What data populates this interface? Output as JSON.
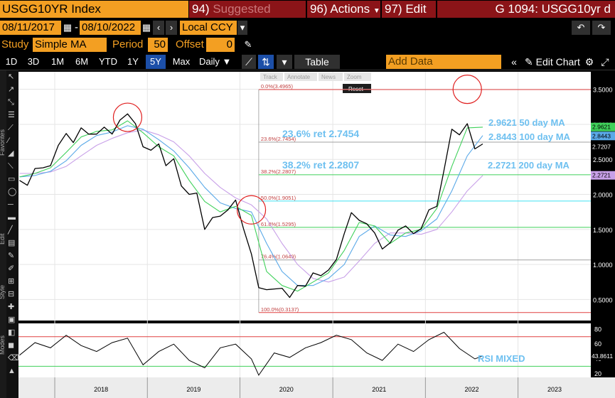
{
  "header": {
    "ticker": "USGG10YR Index",
    "menu": [
      {
        "num": "94)",
        "label": "Suggested Charts"
      },
      {
        "num": "96)",
        "label": "Actions"
      },
      {
        "num": "97)",
        "label": "Edit"
      }
    ],
    "title": "G 1094: USGG10yr d"
  },
  "controls": {
    "start_date": "08/11/2017",
    "end_date": "08/10/2022",
    "currency": "Local CCY",
    "study_label": "Study",
    "study_value": "Simple MA",
    "period_label": "Period",
    "period_value": "50",
    "offset_label": "Offset",
    "offset_value": "0"
  },
  "toolbar": {
    "ranges": [
      "1D",
      "3D",
      "1M",
      "6M",
      "YTD",
      "1Y",
      "5Y",
      "Max"
    ],
    "selected_range": "5Y",
    "frequency": "Daily",
    "table": "Table",
    "add_data_placeholder": "Add Data",
    "edit_chart": "Edit Chart",
    "sidebar_sections": [
      "Favorites",
      "Edit",
      "Style",
      "Modes"
    ],
    "chart_tools": [
      "Track",
      "Annotate",
      "News",
      "Zoom"
    ],
    "reset": "Reset"
  },
  "chart_data": {
    "type": "line",
    "title": "",
    "x_ticks": [
      "2018",
      "2019",
      "2020",
      "2021",
      "2022",
      "2023"
    ],
    "y_ticks": [
      "3.5000",
      "3.0000",
      "2.5000",
      "2.0000",
      "1.5000",
      "1.0000",
      "0.5000"
    ],
    "ylim": [
      0.2,
      3.75
    ],
    "xlim": [
      "2017-08-11",
      "2023-10-15"
    ],
    "series": [
      {
        "name": "USGG10YR",
        "color": "#ffffff",
        "x": [
          "2017-08",
          "2017-09",
          "2017-10",
          "2017-11",
          "2017-12",
          "2018-01",
          "2018-02",
          "2018-03",
          "2018-04",
          "2018-05",
          "2018-06",
          "2018-07",
          "2018-08",
          "2018-09",
          "2018-10",
          "2018-11",
          "2018-12",
          "2019-01",
          "2019-02",
          "2019-03",
          "2019-04",
          "2019-05",
          "2019-06",
          "2019-07",
          "2019-08",
          "2019-09",
          "2019-10",
          "2019-11",
          "2019-12",
          "2020-01",
          "2020-02",
          "2020-03",
          "2020-04",
          "2020-05",
          "2020-06",
          "2020-07",
          "2020-08",
          "2020-09",
          "2020-10",
          "2020-11",
          "2020-12",
          "2021-01",
          "2021-02",
          "2021-03",
          "2021-04",
          "2021-05",
          "2021-06",
          "2021-07",
          "2021-08",
          "2021-09",
          "2021-10",
          "2021-11",
          "2021-12",
          "2022-01",
          "2022-02",
          "2022-03",
          "2022-04",
          "2022-05",
          "2022-06",
          "2022-07",
          "2022-08"
        ],
        "values": [
          2.2,
          2.13,
          2.37,
          2.38,
          2.41,
          2.7,
          2.87,
          2.74,
          2.95,
          2.86,
          2.86,
          2.96,
          2.86,
          3.06,
          3.15,
          3.01,
          2.68,
          2.63,
          2.72,
          2.41,
          2.51,
          2.12,
          2.0,
          2.02,
          1.5,
          1.67,
          1.69,
          1.78,
          1.92,
          1.51,
          1.15,
          0.67,
          0.64,
          0.65,
          0.66,
          0.53,
          0.7,
          0.69,
          0.88,
          0.84,
          0.92,
          1.07,
          1.44,
          1.74,
          1.63,
          1.58,
          1.45,
          1.22,
          1.31,
          1.49,
          1.55,
          1.44,
          1.51,
          1.78,
          1.83,
          2.34,
          2.93,
          2.85,
          3.01,
          2.65,
          2.72
        ]
      },
      {
        "name": "50 day MA",
        "color": "#3fd15a",
        "x": [
          "2017-08",
          "2017-10",
          "2017-12",
          "2018-02",
          "2018-04",
          "2018-06",
          "2018-08",
          "2018-10",
          "2018-12",
          "2019-02",
          "2019-04",
          "2019-06",
          "2019-08",
          "2019-10",
          "2019-12",
          "2020-02",
          "2020-04",
          "2020-06",
          "2020-08",
          "2020-10",
          "2020-12",
          "2021-02",
          "2021-04",
          "2021-06",
          "2021-08",
          "2021-10",
          "2021-12",
          "2022-02",
          "2022-04",
          "2022-06",
          "2022-08"
        ],
        "values": [
          2.25,
          2.3,
          2.38,
          2.6,
          2.82,
          2.9,
          2.92,
          3.05,
          2.88,
          2.68,
          2.55,
          2.2,
          1.9,
          1.75,
          1.83,
          1.7,
          0.9,
          0.7,
          0.62,
          0.75,
          0.88,
          1.2,
          1.6,
          1.55,
          1.3,
          1.45,
          1.5,
          1.8,
          2.4,
          2.95,
          2.96
        ]
      },
      {
        "name": "100 day MA",
        "color": "#5aa9e8",
        "x": [
          "2017-08",
          "2017-10",
          "2017-12",
          "2018-02",
          "2018-04",
          "2018-06",
          "2018-08",
          "2018-10",
          "2018-12",
          "2019-02",
          "2019-04",
          "2019-06",
          "2019-08",
          "2019-10",
          "2019-12",
          "2020-02",
          "2020-04",
          "2020-06",
          "2020-08",
          "2020-10",
          "2020-12",
          "2021-02",
          "2021-04",
          "2021-06",
          "2021-08",
          "2021-10",
          "2021-12",
          "2022-02",
          "2022-04",
          "2022-06",
          "2022-08"
        ],
        "values": [
          2.25,
          2.27,
          2.33,
          2.48,
          2.7,
          2.84,
          2.89,
          2.98,
          2.93,
          2.78,
          2.62,
          2.38,
          2.1,
          1.88,
          1.8,
          1.75,
          1.3,
          0.9,
          0.7,
          0.7,
          0.8,
          1.0,
          1.4,
          1.55,
          1.42,
          1.4,
          1.48,
          1.65,
          2.05,
          2.55,
          2.84
        ]
      },
      {
        "name": "200 day MA",
        "color": "#c8a0e8",
        "x": [
          "2017-08",
          "2017-10",
          "2017-12",
          "2018-02",
          "2018-04",
          "2018-06",
          "2018-08",
          "2018-10",
          "2018-12",
          "2019-02",
          "2019-04",
          "2019-06",
          "2019-08",
          "2019-10",
          "2019-12",
          "2020-02",
          "2020-04",
          "2020-06",
          "2020-08",
          "2020-10",
          "2020-12",
          "2021-02",
          "2021-04",
          "2021-06",
          "2021-08",
          "2021-10",
          "2021-12",
          "2022-02",
          "2022-04",
          "2022-06",
          "2022-08"
        ],
        "values": [
          2.3,
          2.3,
          2.32,
          2.4,
          2.55,
          2.7,
          2.8,
          2.88,
          2.92,
          2.85,
          2.75,
          2.55,
          2.3,
          2.1,
          1.95,
          1.85,
          1.65,
          1.3,
          1.0,
          0.8,
          0.75,
          0.82,
          1.05,
          1.3,
          1.45,
          1.45,
          1.43,
          1.5,
          1.75,
          2.05,
          2.27
        ]
      }
    ],
    "fibonacci": [
      {
        "level": "0.0%",
        "value": 3.4965,
        "color": "#e04040",
        "label": "0.0%(3.4965)"
      },
      {
        "level": "23.6%",
        "value": 2.7454,
        "color": "#a0a0a0",
        "label": "23.6%(2.7454)"
      },
      {
        "level": "38.2%",
        "value": 2.2807,
        "color": "#3fd15a",
        "label": "38.2%(2.2807)"
      },
      {
        "level": "50.0%",
        "value": 1.9051,
        "color": "#40e0f0",
        "label": "50.0%(1.9051)"
      },
      {
        "level": "61.8%",
        "value": 1.5295,
        "color": "#3fd15a",
        "label": "61.8%(1.5295)"
      },
      {
        "level": "76.4%",
        "value": 1.0649,
        "color": "#a0a0a0",
        "label": "76.4%(1.0649)"
      },
      {
        "level": "100.0%",
        "value": 0.3137,
        "color": "#e04040",
        "label": "100.0%(0.3137)"
      }
    ],
    "annotations": [
      {
        "text": "23.6% ret 2.7454",
        "color": "#6ec0f0"
      },
      {
        "text": "38.2% ret 2.2807",
        "color": "#6ec0f0"
      },
      {
        "text": "2.9621 50 day MA",
        "color": "#6ec0f0"
      },
      {
        "text": "2.8443 100 day MA",
        "color": "#6ec0f0"
      },
      {
        "text": "2.2721 200 day MA",
        "color": "#6ec0f0"
      },
      {
        "text": "RSI MIXED",
        "color": "#6ec0f0"
      }
    ],
    "right_tags": [
      {
        "text": "2.9621",
        "color": "#3fd15a"
      },
      {
        "text": "2.8443",
        "color": "#5aa9e8"
      },
      {
        "text": "2.7207",
        "color": "#ffffff"
      },
      {
        "text": "2.2721",
        "color": "#c8a0e8"
      }
    ],
    "rsi": {
      "name": "RSI",
      "y_ticks": [
        "80",
        "60",
        "40",
        "20"
      ],
      "ylim": [
        15,
        88
      ],
      "upper": 70,
      "lower": 30,
      "last": "43.8611",
      "x": [
        "2017-08",
        "2017-10",
        "2017-12",
        "2018-02",
        "2018-04",
        "2018-06",
        "2018-08",
        "2018-10",
        "2018-12",
        "2019-02",
        "2019-04",
        "2019-06",
        "2019-08",
        "2019-10",
        "2019-12",
        "2020-02",
        "2020-03",
        "2020-05",
        "2020-07",
        "2020-09",
        "2020-11",
        "2021-01",
        "2021-03",
        "2021-05",
        "2021-07",
        "2021-09",
        "2021-11",
        "2022-01",
        "2022-03",
        "2022-05",
        "2022-07",
        "2022-08"
      ],
      "values": [
        45,
        62,
        55,
        72,
        58,
        50,
        62,
        68,
        32,
        50,
        60,
        38,
        28,
        55,
        60,
        40,
        18,
        48,
        42,
        55,
        62,
        72,
        66,
        48,
        38,
        60,
        50,
        66,
        76,
        54,
        40,
        44
      ]
    }
  }
}
